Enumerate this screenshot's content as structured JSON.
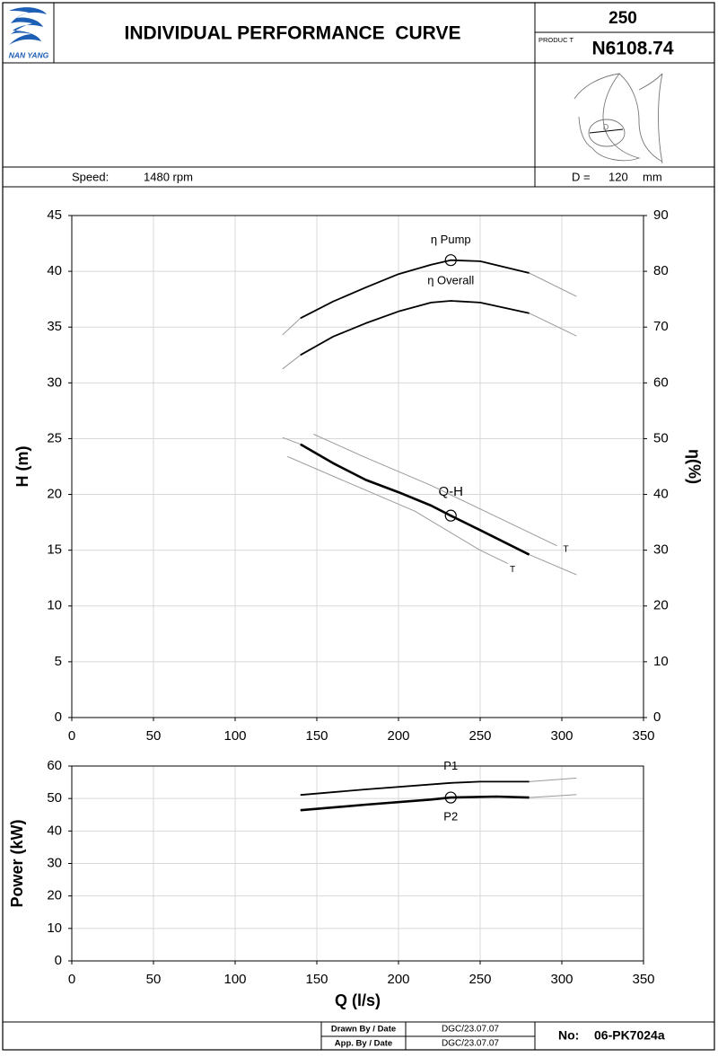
{
  "header": {
    "logo_text": "NAN YANG",
    "title": "INDIVIDUAL PERFORMANCE  CURVE",
    "size": "250",
    "product_label": "PRODUC T",
    "product": "N6108.74",
    "speed_label": "Speed:",
    "speed": "1480 rpm",
    "impeller_symbol": "D",
    "d_label": "D =",
    "d_value": "120",
    "d_unit": "mm"
  },
  "chart_data": [
    {
      "type": "line",
      "ylabel": "H (m)",
      "y2label": "η(%)",
      "xlim": [
        0,
        350
      ],
      "xticks": [
        0,
        50,
        100,
        150,
        200,
        250,
        300,
        350
      ],
      "ylim": [
        0,
        45
      ],
      "yticks": [
        0,
        5,
        10,
        15,
        20,
        25,
        30,
        35,
        40,
        45
      ],
      "y2lim": [
        0,
        90
      ],
      "y2ticks": [
        0,
        10,
        20,
        30,
        40,
        50,
        60,
        70,
        80,
        90
      ],
      "grid": true,
      "series": [
        {
          "axis": "y2",
          "color": "#9a9a9a",
          "x": [
            129,
            140,
            160,
            180,
            200,
            220,
            232,
            250,
            280,
            309
          ],
          "values": [
            68.6,
            71.6,
            74.6,
            77.1,
            79.5,
            81.2,
            82,
            81.8,
            79.7,
            75.5
          ]
        },
        {
          "name": "η Pump",
          "axis": "y2",
          "color": "#000000",
          "x": [
            140,
            160,
            180,
            200,
            220,
            232,
            250,
            280
          ],
          "values": [
            71.6,
            74.6,
            77.1,
            79.5,
            81.2,
            82,
            81.8,
            79.7
          ]
        },
        {
          "axis": "y2",
          "color": "#9a9a9a",
          "x": [
            129,
            140,
            160,
            180,
            200,
            220,
            232,
            250,
            280,
            309
          ],
          "values": [
            62.5,
            65,
            68.3,
            70.7,
            72.8,
            74.4,
            74.7,
            74.4,
            72.5,
            68.4
          ]
        },
        {
          "name": "η Overall",
          "axis": "y2",
          "color": "#000000",
          "x": [
            140,
            160,
            180,
            200,
            220,
            232,
            250,
            280
          ],
          "values": [
            65,
            68.3,
            70.7,
            72.8,
            74.4,
            74.7,
            74.4,
            72.5
          ]
        },
        {
          "color": "#9a9a9a",
          "x": [
            129,
            140,
            160,
            180,
            200,
            220,
            232,
            250,
            280,
            309
          ],
          "values": [
            25.1,
            24.5,
            22.8,
            21.3,
            20.2,
            19,
            18.1,
            16.8,
            14.6,
            12.8
          ]
        },
        {
          "name": "Q-H",
          "color": "#000000",
          "x": [
            140,
            160,
            180,
            200,
            220,
            232,
            250,
            280
          ],
          "values": [
            24.5,
            22.8,
            21.3,
            20.2,
            19,
            18.1,
            16.8,
            14.6
          ]
        },
        {
          "name": "T",
          "color": "#9a9a9a",
          "x": [
            148,
            180,
            220,
            260,
            297
          ],
          "values": [
            25.4,
            23.3,
            20.8,
            18,
            15.4
          ]
        },
        {
          "name": "T",
          "color": "#9a9a9a",
          "x": [
            132,
            170,
            210,
            250,
            267
          ],
          "values": [
            23.4,
            21,
            18.5,
            15,
            13.8
          ]
        }
      ]
    },
    {
      "type": "line",
      "ylabel": "Power (kW)",
      "xlabel": "Q (l/s)",
      "xlim": [
        0,
        350
      ],
      "xticks": [
        0,
        50,
        100,
        150,
        200,
        250,
        300,
        350
      ],
      "ylim": [
        0,
        60
      ],
      "yticks": [
        0,
        10,
        20,
        30,
        40,
        50,
        60
      ],
      "grid": true,
      "series": [
        {
          "color": "#9a9a9a",
          "x": [
            140,
            180,
            232,
            250,
            280,
            309
          ],
          "values": [
            51.1,
            52.8,
            54.8,
            55.2,
            55.2,
            56.3
          ]
        },
        {
          "name": "P1",
          "color": "#000000",
          "x": [
            140,
            180,
            232,
            250,
            280
          ],
          "values": [
            51.1,
            52.8,
            54.8,
            55.2,
            55.2
          ]
        },
        {
          "color": "#9a9a9a",
          "x": [
            140,
            180,
            220,
            232,
            260,
            280,
            309
          ],
          "values": [
            46.4,
            48.1,
            49.7,
            50.3,
            50.6,
            50.3,
            51.2
          ]
        },
        {
          "name": "P2",
          "color": "#000000",
          "x": [
            140,
            180,
            220,
            232,
            260,
            280
          ],
          "values": [
            46.4,
            48.1,
            49.7,
            50.3,
            50.6,
            50.3
          ]
        }
      ]
    }
  ],
  "footer": {
    "drawn_label": "Drawn By / Date",
    "drawn_value": "DGC/23.07.07",
    "approved_label": "App. By / Date",
    "approved_value": "DGC/23.07.07",
    "number_label": "No:",
    "number": "06-PK7024a"
  }
}
